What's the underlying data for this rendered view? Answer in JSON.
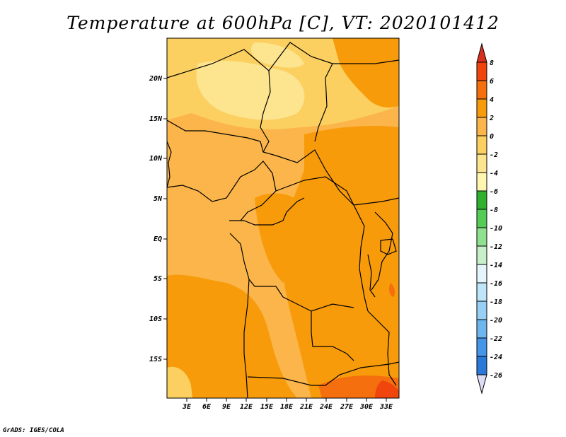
{
  "title": "Temperature at 600hPa [C], VT: 2020101412",
  "credit": "GrADS: IGES/COLA",
  "map": {
    "lat_labels": [
      "20N",
      "15N",
      "10N",
      "5N",
      "EQ",
      "5S",
      "10S",
      "15S"
    ],
    "lon_labels": [
      "3E",
      "6E",
      "9E",
      "12E",
      "15E",
      "18E",
      "21E",
      "24E",
      "27E",
      "30E",
      "33E"
    ]
  },
  "colorbar": {
    "labels": [
      "8",
      "6",
      "4",
      "2",
      "0",
      "-2",
      "-4",
      "-6",
      "-8",
      "-10",
      "-12",
      "-14",
      "-16",
      "-18",
      "-20",
      "-22",
      "-24",
      "-26"
    ],
    "colors": [
      "#d7301f",
      "#f0450c",
      "#f56f0e",
      "#f79b0b",
      "#fbb54a",
      "#fbd060",
      "#fde48f",
      "#fff6b0",
      "#2fb02f",
      "#55cc55",
      "#8fe08f",
      "#c8f0c8",
      "#e4f6fc",
      "#bfe6f8",
      "#97d0f4",
      "#6eb6ee",
      "#4596e8",
      "#2a78d8",
      "#1d5ec4",
      "#1446a8",
      "#0b2f88",
      "#041565",
      "#dcdcf4"
    ]
  }
}
